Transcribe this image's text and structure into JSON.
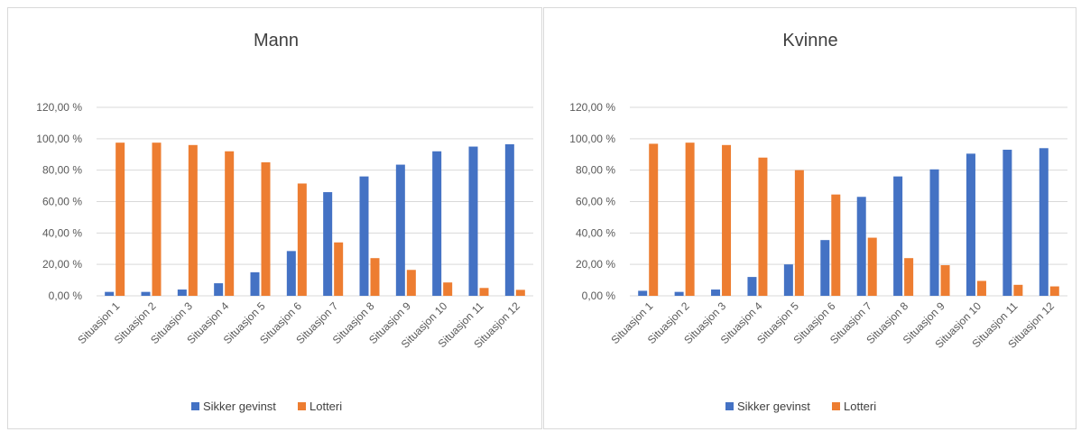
{
  "colors": {
    "sikker": "#4472c4",
    "lotteri": "#ed7d31",
    "grid": "#d9d9d9",
    "text": "#595959"
  },
  "chart_data": [
    {
      "type": "bar",
      "title": "Mann",
      "categories": [
        "Situasjon 1",
        "Situasjon 2",
        "Situasjon 3",
        "Situasjon 4",
        "Situasjon 5",
        "Situasjon 6",
        "Situasjon 7",
        "Situasjon 8",
        "Situasjon 9",
        "Situasjon 10",
        "Situasjon 11",
        "Situasjon 12"
      ],
      "series": [
        {
          "name": "Sikker gevinst",
          "values": [
            2.5,
            2.5,
            4,
            8,
            15,
            28.5,
            66,
            76,
            83.5,
            92,
            95,
            96.5
          ]
        },
        {
          "name": "Lotteri",
          "values": [
            97.5,
            97.5,
            96,
            92,
            85,
            71.5,
            34,
            24,
            16.5,
            8.5,
            5,
            3.8
          ]
        }
      ],
      "yticks": [
        "0,00 %",
        "20,00 %",
        "40,00 %",
        "60,00 %",
        "80,00 %",
        "100,00 %",
        "120,00 %"
      ],
      "ylim": [
        0,
        120
      ],
      "grid": true,
      "legend": "bottom"
    },
    {
      "type": "bar",
      "title": "Kvinne",
      "categories": [
        "Situasjon 1",
        "Situasjon 2",
        "Situasjon 3",
        "Situasjon 4",
        "Situasjon 5",
        "Situasjon 6",
        "Situasjon 7",
        "Situasjon 8",
        "Situasjon 9",
        "Situasjon 10",
        "Situasjon 11",
        "Situasjon 12"
      ],
      "series": [
        {
          "name": "Sikker gevinst",
          "values": [
            3.2,
            2.5,
            4,
            12,
            20,
            35.5,
            63,
            76,
            80.5,
            90.5,
            93,
            94
          ]
        },
        {
          "name": "Lotteri",
          "values": [
            96.8,
            97.5,
            96,
            88,
            80,
            64.5,
            37,
            24,
            19.5,
            9.5,
            7,
            6
          ]
        }
      ],
      "yticks": [
        "0,00 %",
        "20,00 %",
        "40,00 %",
        "60,00 %",
        "80,00 %",
        "100,00 %",
        "120,00 %"
      ],
      "ylim": [
        0,
        120
      ],
      "grid": true,
      "legend": "bottom"
    }
  ]
}
